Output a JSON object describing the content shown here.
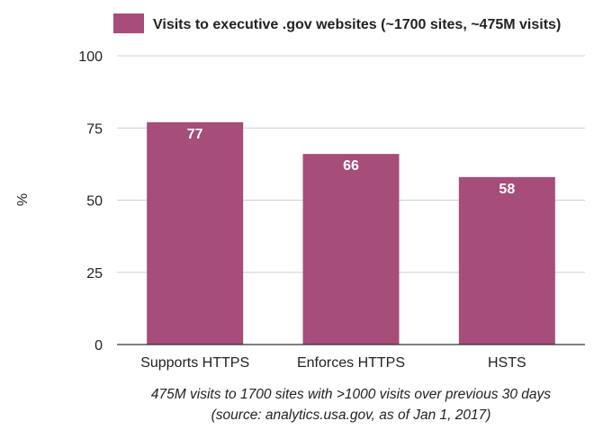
{
  "chart_data": {
    "type": "bar",
    "categories": [
      "Supports HTTPS",
      "Enforces HTTPS",
      "HSTS"
    ],
    "series": [
      {
        "name": "Visits to executive .gov websites (~1700 sites, ~475M visits)",
        "values": [
          77,
          66,
          58
        ],
        "color": "#a64d79"
      }
    ],
    "data_labels": [
      "77",
      "66",
      "58"
    ],
    "ylabel": "%",
    "xlabel": "",
    "ylim": [
      0,
      100
    ],
    "yticks": [
      0,
      25,
      50,
      75,
      100
    ],
    "grid": true,
    "legend_position": "top-right",
    "caption": [
      "475M visits to 1700 sites with >1000 visits over previous 30 days",
      "(source: analytics.usa.gov, as of Jan 1, 2017)"
    ],
    "colors": {
      "bar": "#a64d79",
      "grid": "#d0d0d0",
      "axis": "#333333"
    }
  }
}
